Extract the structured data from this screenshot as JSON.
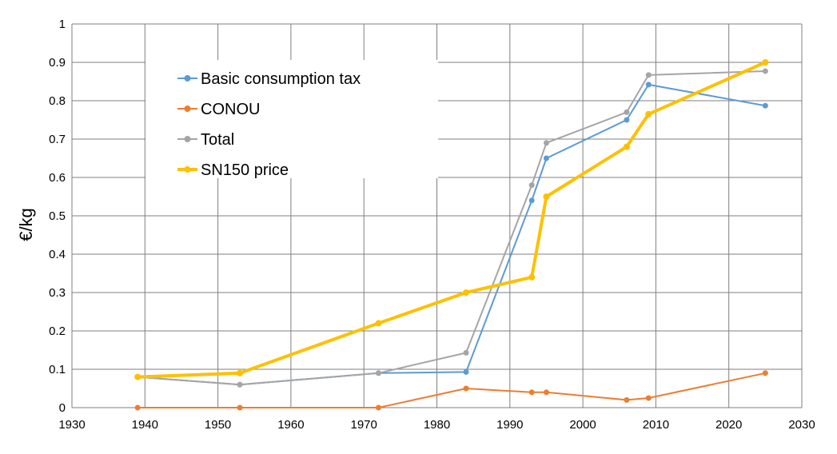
{
  "chart_data": {
    "type": "line",
    "title": "",
    "xlabel": "",
    "ylabel": "€/kg",
    "xlim": [
      1930,
      2030
    ],
    "ylim": [
      0,
      1
    ],
    "x_ticks": [
      "1930",
      "1940",
      "1950",
      "1960",
      "1970",
      "1980",
      "1990",
      "2000",
      "2010",
      "2020",
      "2030"
    ],
    "y_ticks": [
      "0",
      "0.1",
      "0.2",
      "0.3",
      "0.4",
      "0.5",
      "0.6",
      "0.7",
      "0.8",
      "0.9",
      "1"
    ],
    "grid": true,
    "legend_position": "top-left",
    "series": [
      {
        "name": "Basic consumption tax",
        "color": "#5b9bd5",
        "points": [
          [
            1939,
            0.08
          ],
          [
            1953,
            0.06
          ],
          [
            1972,
            0.09
          ],
          [
            1984,
            0.093
          ],
          [
            1993,
            0.54
          ],
          [
            1995,
            0.65
          ],
          [
            2006,
            0.75
          ],
          [
            2009,
            0.842
          ],
          [
            2025,
            0.787
          ]
        ]
      },
      {
        "name": "CONOU",
        "color": "#ed7d31",
        "points": [
          [
            1939,
            0
          ],
          [
            1953,
            0
          ],
          [
            1972,
            0
          ],
          [
            1984,
            0.05
          ],
          [
            1993,
            0.04
          ],
          [
            1995,
            0.04
          ],
          [
            2006,
            0.02
          ],
          [
            2009,
            0.025
          ],
          [
            2025,
            0.09
          ]
        ]
      },
      {
        "name": "Total",
        "color": "#a5a5a5",
        "points": [
          [
            1939,
            0.08
          ],
          [
            1953,
            0.06
          ],
          [
            1972,
            0.09
          ],
          [
            1984,
            0.143
          ],
          [
            1993,
            0.58
          ],
          [
            1995,
            0.69
          ],
          [
            2006,
            0.77
          ],
          [
            2009,
            0.867
          ],
          [
            2025,
            0.877
          ]
        ]
      },
      {
        "name": "SN150 price",
        "color": "#ffc000",
        "points": [
          [
            1939,
            0.08
          ],
          [
            1953,
            0.09
          ],
          [
            1972,
            0.22
          ],
          [
            1984,
            0.3
          ],
          [
            1993,
            0.34
          ],
          [
            1995,
            0.55
          ],
          [
            2006,
            0.68
          ],
          [
            2009,
            0.765
          ],
          [
            2025,
            0.9
          ]
        ]
      }
    ]
  }
}
